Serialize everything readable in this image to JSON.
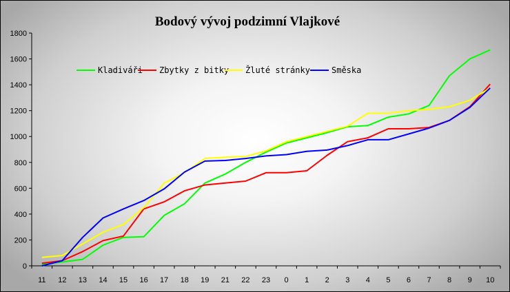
{
  "chart_data": {
    "type": "line",
    "title": "Bodový vývoj podzimní Vlajkové",
    "categories": [
      "11",
      "12",
      "13",
      "14",
      "15",
      "16",
      "17",
      "18",
      "19",
      "21",
      "22",
      "23",
      "0",
      "1",
      "2",
      "3",
      "4",
      "5",
      "6",
      "7",
      "8",
      "9",
      "10"
    ],
    "ylim": [
      0,
      1800
    ],
    "yticks": [
      0,
      200,
      400,
      600,
      800,
      1000,
      1200,
      1400,
      1600,
      1800
    ],
    "grid": false,
    "legend_position": "top-left",
    "series": [
      {
        "name": "Kladiváři",
        "color": "#00ff00",
        "values": [
          10,
          30,
          50,
          160,
          220,
          225,
          390,
          480,
          640,
          710,
          800,
          880,
          950,
          990,
          1030,
          1075,
          1085,
          1150,
          1175,
          1240,
          1470,
          1600,
          1670
        ]
      },
      {
        "name": "Zbytky z bitky",
        "color": "#ff0000",
        "values": [
          20,
          40,
          110,
          195,
          230,
          440,
          495,
          580,
          625,
          640,
          655,
          720,
          720,
          735,
          855,
          960,
          990,
          1060,
          1060,
          1070,
          1125,
          1230,
          1405
        ]
      },
      {
        "name": "Žluté stránky",
        "color": "#ffff00",
        "values": [
          65,
          80,
          170,
          260,
          320,
          450,
          640,
          720,
          830,
          840,
          845,
          890,
          960,
          1000,
          1040,
          1080,
          1180,
          1180,
          1200,
          1210,
          1230,
          1280,
          1375
        ]
      },
      {
        "name": "Směska",
        "color": "#0000ff",
        "values": [
          0,
          40,
          220,
          370,
          440,
          505,
          595,
          725,
          810,
          815,
          830,
          850,
          860,
          885,
          895,
          930,
          975,
          975,
          1020,
          1065,
          1125,
          1225,
          1375
        ]
      }
    ]
  }
}
